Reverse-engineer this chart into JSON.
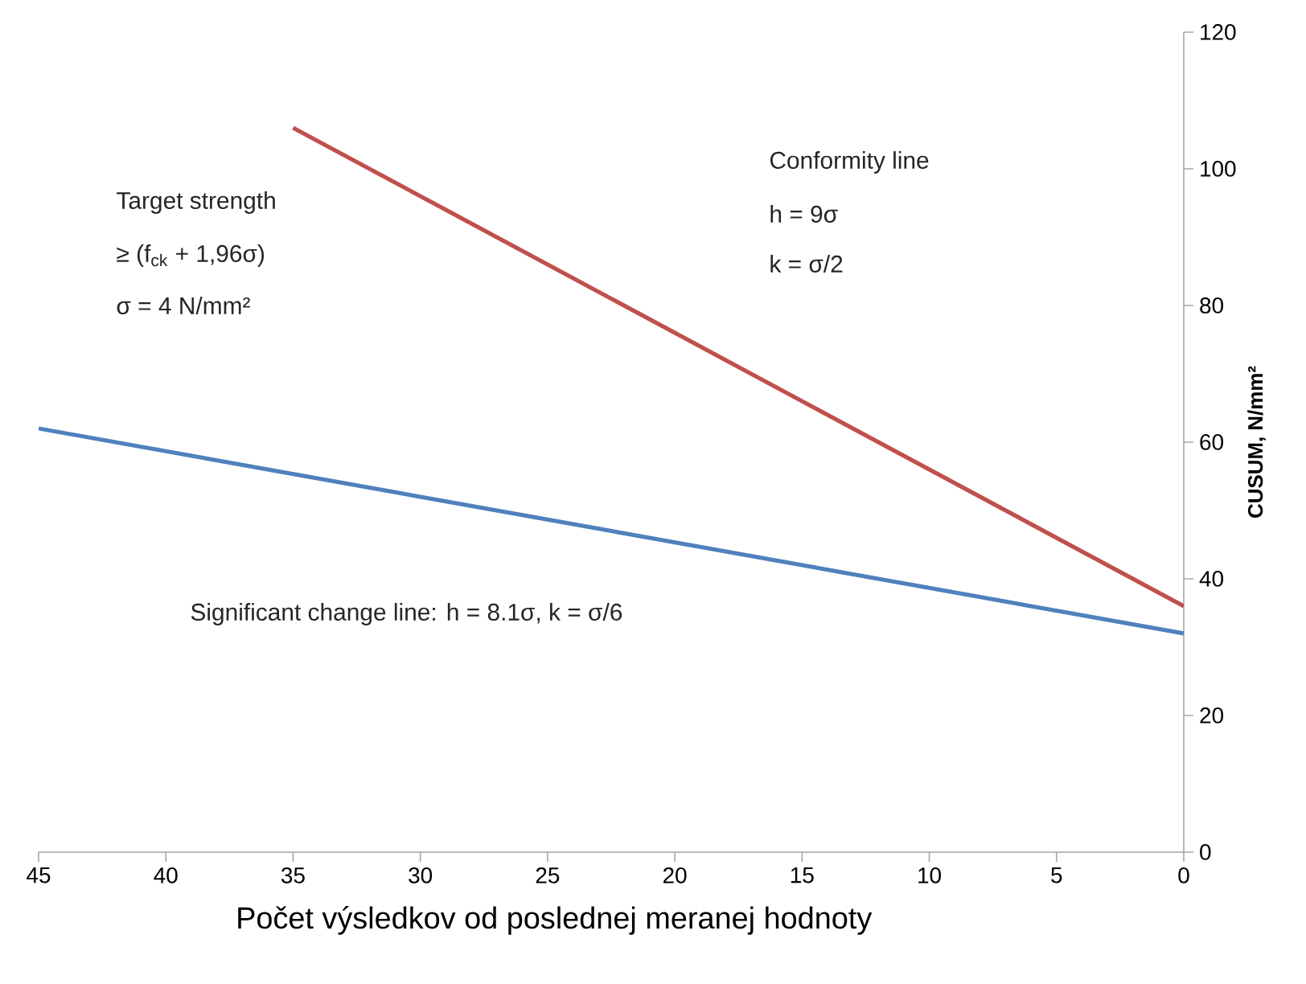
{
  "chart_data": {
    "type": "line",
    "xlabel": "Počet výsledkov od poslednej meranej hodnoty",
    "ylabel": "CUSUM, N/mm²",
    "xlim": [
      45,
      0
    ],
    "xticks": [
      45,
      40,
      35,
      30,
      25,
      20,
      15,
      10,
      5,
      0
    ],
    "ylim": [
      0,
      120
    ],
    "yticks": [
      0,
      20,
      40,
      60,
      80,
      100,
      120
    ],
    "grid": false,
    "legend": false,
    "marker": "none",
    "line_style": "solid",
    "series": [
      {
        "color": "#c0504d",
        "x": [
          35,
          0
        ],
        "values": [
          106,
          36
        ]
      },
      {
        "color": "#4f81bd",
        "x": [
          45,
          0
        ],
        "values": [
          62,
          32
        ]
      }
    ],
    "annotations": [
      "Target strength",
      "≥ (f$_{ck}$ + 1,96σ)",
      "σ = 4 N/mm²",
      "Conformity line",
      "h = 9σ",
      "k = σ/2",
      "Significant change line: h = 8.1σ, k = σ/6"
    ]
  }
}
